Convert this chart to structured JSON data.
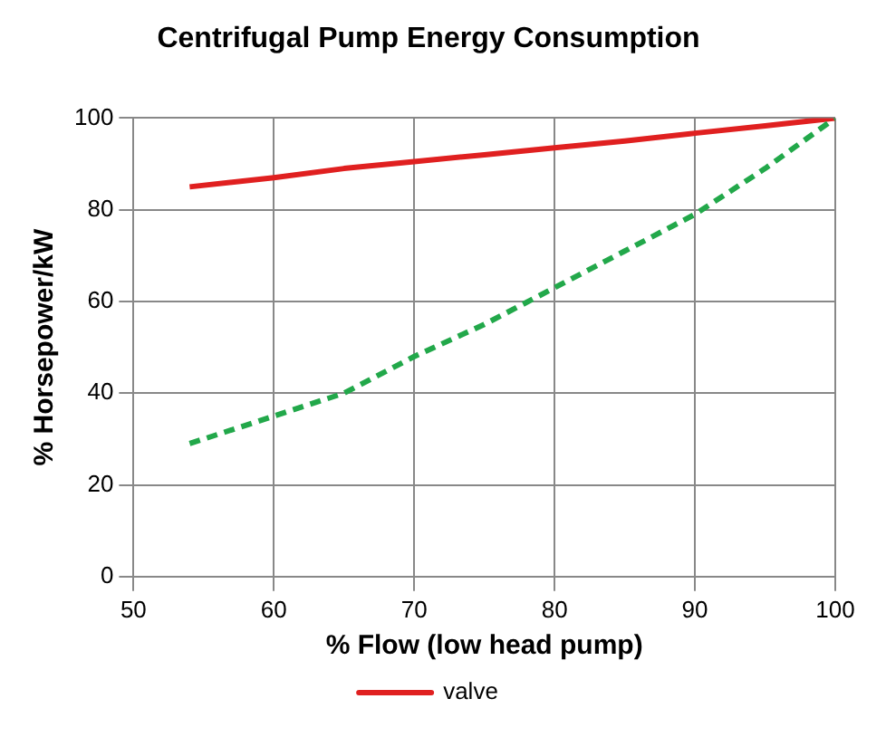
{
  "chart_data": {
    "type": "line",
    "title": "Centrifugal Pump Energy Consumption",
    "xlabel": "% Flow (low head pump)",
    "ylabel": "% Horsepower/kW",
    "x": [
      54,
      60,
      65,
      70,
      75,
      80,
      85,
      90,
      95,
      100
    ],
    "series": [
      {
        "color": "#22a84a",
        "line_style": "dashed",
        "values": [
          29,
          35,
          40,
          48,
          55,
          63,
          71,
          79,
          89,
          100
        ]
      },
      {
        "name": "valve",
        "color": "#e02020",
        "line_style": "solid",
        "values": [
          85,
          87,
          89,
          90.5,
          92,
          93.5,
          95,
          96.7,
          98.3,
          100
        ]
      }
    ],
    "xlim": [
      50,
      100
    ],
    "xticks": [
      50,
      60,
      70,
      80,
      90,
      100
    ],
    "ylim": [
      0,
      100
    ],
    "yticks": [
      0,
      20,
      40,
      60,
      80,
      100
    ],
    "grid": true,
    "legend": "bottom",
    "marker": "none"
  }
}
